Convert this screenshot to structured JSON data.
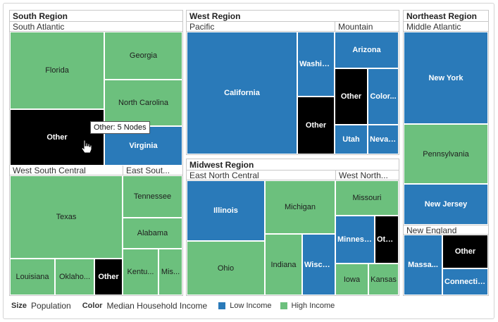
{
  "colors": {
    "low": "#2a7ab9",
    "high": "#6cc07d",
    "other": "#000000"
  },
  "regions": {
    "south": {
      "title": "South Region",
      "south_atlantic": {
        "title": "South Atlantic",
        "florida": "Florida",
        "georgia": "Georgia",
        "north_carolina": "North Carolina",
        "other": "Other",
        "virginia": "Virginia"
      },
      "west_south_central": {
        "title": "West South Central",
        "texas": "Texas",
        "louisiana": "Louisiana",
        "oklahoma": "Oklaho...",
        "other": "Other"
      },
      "east_south_central": {
        "title": "East Sout...",
        "tennessee": "Tennessee",
        "alabama": "Alabama",
        "kentucky": "Kentu...",
        "mississippi": "Mis..."
      }
    },
    "west": {
      "title": "West Region",
      "pacific": {
        "title": "Pacific",
        "california": "California",
        "washington": "Washin...",
        "other": "Other"
      },
      "mountain": {
        "title": "Mountain",
        "arizona": "Arizona",
        "other": "Other",
        "colorado": "Color...",
        "utah": "Utah",
        "nevada": "Nevada"
      }
    },
    "midwest": {
      "title": "Midwest Region",
      "east_north_central": {
        "title": "East North Central",
        "illinois": "Illinois",
        "michigan": "Michigan",
        "ohio": "Ohio",
        "indiana": "Indiana",
        "wisconsin": "Wisco..."
      },
      "west_north_central": {
        "title": "West North...",
        "missouri": "Missouri",
        "minnesota": "Minnesota",
        "other": "Other",
        "iowa": "Iowa",
        "kansas": "Kansas"
      }
    },
    "northeast": {
      "title": "Northeast Region",
      "middle_atlantic": {
        "title": "Middle Atlantic",
        "new_york": "New York",
        "pennsylvania": "Pennsylvania",
        "new_jersey": "New Jersey"
      },
      "new_england": {
        "title": "New England",
        "massachusetts": "Massa...",
        "other": "Other",
        "connecticut": "Connecticut"
      }
    }
  },
  "tooltip": "Other: 5 Nodes",
  "legend": {
    "size_label": "Size",
    "size_value": "Population",
    "color_label": "Color",
    "color_value": "Median Household Income",
    "low": "Low Income",
    "high": "High Income"
  },
  "chart_data": {
    "type": "treemap",
    "size_measure": "Population",
    "color_measure": "Median Household Income",
    "color_categories": [
      "Low Income",
      "High Income"
    ],
    "hierarchy": [
      {
        "region": "South Region",
        "divisions": [
          {
            "name": "South Atlantic",
            "states": [
              {
                "name": "Florida",
                "color": "High Income"
              },
              {
                "name": "Georgia",
                "color": "High Income"
              },
              {
                "name": "North Carolina",
                "color": "High Income"
              },
              {
                "name": "Other",
                "color": "Other"
              },
              {
                "name": "Virginia",
                "color": "Low Income"
              }
            ]
          },
          {
            "name": "West South Central",
            "states": [
              {
                "name": "Texas",
                "color": "High Income"
              },
              {
                "name": "Louisiana",
                "color": "High Income"
              },
              {
                "name": "Oklaho...",
                "color": "High Income"
              },
              {
                "name": "Other",
                "color": "Other"
              }
            ]
          },
          {
            "name": "East Sout...",
            "states": [
              {
                "name": "Tennessee",
                "color": "High Income"
              },
              {
                "name": "Alabama",
                "color": "High Income"
              },
              {
                "name": "Kentu...",
                "color": "High Income"
              },
              {
                "name": "Mis...",
                "color": "High Income"
              }
            ]
          }
        ]
      },
      {
        "region": "West Region",
        "divisions": [
          {
            "name": "Pacific",
            "states": [
              {
                "name": "California",
                "color": "Low Income"
              },
              {
                "name": "Washin...",
                "color": "Low Income"
              },
              {
                "name": "Other",
                "color": "Other"
              }
            ]
          },
          {
            "name": "Mountain",
            "states": [
              {
                "name": "Arizona",
                "color": "Low Income"
              },
              {
                "name": "Other",
                "color": "Other"
              },
              {
                "name": "Color...",
                "color": "Low Income"
              },
              {
                "name": "Utah",
                "color": "Low Income"
              },
              {
                "name": "Nevada",
                "color": "Low Income"
              }
            ]
          }
        ]
      },
      {
        "region": "Midwest Region",
        "divisions": [
          {
            "name": "East North Central",
            "states": [
              {
                "name": "Illinois",
                "color": "Low Income"
              },
              {
                "name": "Michigan",
                "color": "High Income"
              },
              {
                "name": "Ohio",
                "color": "High Income"
              },
              {
                "name": "Indiana",
                "color": "High Income"
              },
              {
                "name": "Wisco...",
                "color": "Low Income"
              }
            ]
          },
          {
            "name": "West North...",
            "states": [
              {
                "name": "Missouri",
                "color": "High Income"
              },
              {
                "name": "Minnesota",
                "color": "Low Income"
              },
              {
                "name": "Other",
                "color": "Other"
              },
              {
                "name": "Iowa",
                "color": "High Income"
              },
              {
                "name": "Kansas",
                "color": "High Income"
              }
            ]
          }
        ]
      },
      {
        "region": "Northeast Region",
        "divisions": [
          {
            "name": "Middle Atlantic",
            "states": [
              {
                "name": "New York",
                "color": "Low Income"
              },
              {
                "name": "Pennsylvania",
                "color": "High Income"
              },
              {
                "name": "New Jersey",
                "color": "Low Income"
              }
            ]
          },
          {
            "name": "New England",
            "states": [
              {
                "name": "Massa...",
                "color": "Low Income"
              },
              {
                "name": "Other",
                "color": "Other"
              },
              {
                "name": "Connecticut",
                "color": "Low Income"
              }
            ]
          }
        ]
      }
    ]
  }
}
